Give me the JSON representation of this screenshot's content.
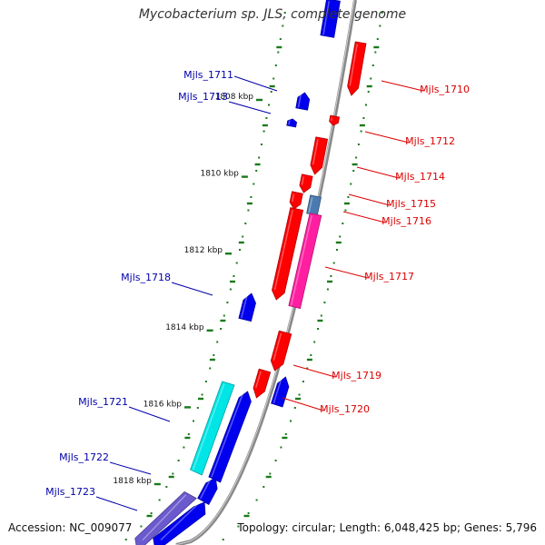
{
  "title": "Mycobacterium sp. JLS, complete genome",
  "footer": {
    "accession": "Accession: NC_009077",
    "summary": "Topology: circular; Length: 6,048,425 bp; Genes: 5,796"
  },
  "colors": {
    "forward_label": "#dd0000",
    "reverse_label": "#0000aa",
    "forward_gene": "#ff0000",
    "reverse_gene": "#0000ee",
    "cds_magenta": "#ff1fa0",
    "cds_cyan": "#00e5e5",
    "cds_steel": "#4a7ab0",
    "cds_slate": "#6a5acd",
    "tick": "#1a7a1a",
    "backbone": "#888888"
  },
  "ruler": [
    {
      "label": "1808 kbp",
      "kbp": 1808
    },
    {
      "label": "1810 kbp",
      "kbp": 1810
    },
    {
      "label": "1812 kbp",
      "kbp": 1812
    },
    {
      "label": "1814 kbp",
      "kbp": 1814
    },
    {
      "label": "1816 kbp",
      "kbp": 1816
    },
    {
      "label": "1818 kbp",
      "kbp": 1818
    }
  ],
  "genes": [
    {
      "label": "Mjls_1710",
      "strand": "+"
    },
    {
      "label": "Mjls_1711",
      "strand": "-"
    },
    {
      "label": "Mjls_1712",
      "strand": "+"
    },
    {
      "label": "Mjls_1713",
      "strand": "-"
    },
    {
      "label": "Mjls_1714",
      "strand": "+"
    },
    {
      "label": "Mjls_1715",
      "strand": "+"
    },
    {
      "label": "Mjls_1716",
      "strand": "+"
    },
    {
      "label": "Mjls_1717",
      "strand": "+"
    },
    {
      "label": "Mjls_1718",
      "strand": "-"
    },
    {
      "label": "Mjls_1719",
      "strand": "+"
    },
    {
      "label": "Mjls_1720",
      "strand": "+"
    },
    {
      "label": "Mjls_1721",
      "strand": "-"
    },
    {
      "label": "Mjls_1722",
      "strand": "-"
    },
    {
      "label": "Mjls_1723",
      "strand": "-"
    }
  ]
}
